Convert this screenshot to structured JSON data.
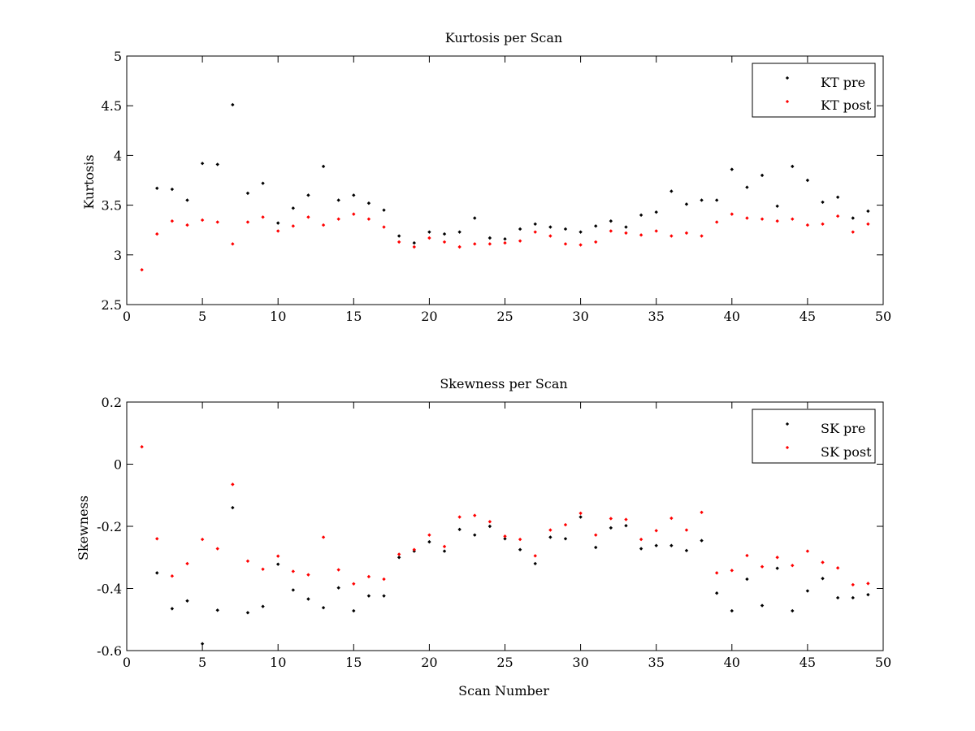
{
  "chart_data": [
    {
      "type": "scatter",
      "title": "Kurtosis per Scan",
      "xlabel": "",
      "ylabel": "Kurtosis",
      "xlim": [
        0,
        50
      ],
      "ylim": [
        2.5,
        5
      ],
      "xticks": [
        0,
        5,
        10,
        15,
        20,
        25,
        30,
        35,
        40,
        45,
        50
      ],
      "yticks": [
        2.5,
        3,
        3.5,
        4,
        4.5,
        5
      ],
      "ytick_labels": [
        "2.5",
        "3",
        "3.5",
        "4",
        "4.5",
        "5"
      ],
      "legend_position": "top-right",
      "series": [
        {
          "name": "KT pre",
          "color": "#000000",
          "x": [
            2,
            3,
            4,
            5,
            6,
            7,
            8,
            9,
            10,
            11,
            12,
            13,
            14,
            15,
            16,
            17,
            18,
            19,
            20,
            21,
            22,
            23,
            24,
            25,
            26,
            27,
            28,
            29,
            30,
            31,
            32,
            33,
            34,
            35,
            36,
            37,
            38,
            39,
            40,
            41,
            42,
            43,
            44,
            45,
            46,
            47,
            48,
            49
          ],
          "values": [
            3.67,
            3.66,
            3.55,
            3.92,
            3.91,
            4.51,
            3.62,
            3.72,
            3.32,
            3.47,
            3.6,
            3.89,
            3.55,
            3.6,
            3.52,
            3.45,
            3.19,
            3.12,
            3.23,
            3.21,
            3.23,
            3.37,
            3.17,
            3.16,
            3.26,
            3.31,
            3.28,
            3.26,
            3.23,
            3.29,
            3.34,
            3.28,
            3.4,
            3.43,
            3.64,
            3.51,
            3.55,
            3.55,
            3.86,
            3.68,
            3.8,
            3.49,
            3.89,
            3.75,
            3.53,
            3.58,
            3.37,
            3.44
          ]
        },
        {
          "name": "KT post",
          "color": "#ff0000",
          "x": [
            1,
            2,
            3,
            4,
            5,
            6,
            7,
            8,
            9,
            10,
            11,
            12,
            13,
            14,
            15,
            16,
            17,
            18,
            19,
            20,
            21,
            22,
            23,
            24,
            25,
            26,
            27,
            28,
            29,
            30,
            31,
            32,
            33,
            34,
            35,
            36,
            37,
            38,
            39,
            40,
            41,
            42,
            43,
            44,
            45,
            46,
            47,
            48,
            49
          ],
          "values": [
            2.85,
            3.21,
            3.34,
            3.3,
            3.35,
            3.33,
            3.11,
            3.33,
            3.38,
            3.24,
            3.29,
            3.38,
            3.3,
            3.36,
            3.41,
            3.36,
            3.28,
            3.13,
            3.08,
            3.17,
            3.13,
            3.08,
            3.11,
            3.11,
            3.12,
            3.14,
            3.23,
            3.19,
            3.11,
            3.1,
            3.13,
            3.24,
            3.22,
            3.2,
            3.24,
            3.19,
            3.22,
            3.19,
            3.33,
            3.41,
            3.37,
            3.36,
            3.34,
            3.36,
            3.3,
            3.31,
            3.39,
            3.23,
            3.31
          ]
        }
      ]
    },
    {
      "type": "scatter",
      "title": "Skewness per Scan",
      "xlabel": "Scan Number",
      "ylabel": "Skewness",
      "xlim": [
        0,
        50
      ],
      "ylim": [
        -0.6,
        0.2
      ],
      "xticks": [
        0,
        5,
        10,
        15,
        20,
        25,
        30,
        35,
        40,
        45,
        50
      ],
      "yticks": [
        -0.6,
        -0.4,
        -0.2,
        0,
        0.2
      ],
      "ytick_labels": [
        "-0.6",
        "-0.4",
        "-0.2",
        "0",
        "0.2"
      ],
      "legend_position": "top-right",
      "series": [
        {
          "name": "SK pre",
          "color": "#000000",
          "x": [
            2,
            3,
            4,
            5,
            6,
            7,
            8,
            9,
            10,
            11,
            12,
            13,
            14,
            15,
            16,
            17,
            18,
            19,
            20,
            21,
            22,
            23,
            24,
            25,
            26,
            27,
            28,
            29,
            30,
            31,
            32,
            33,
            34,
            35,
            36,
            37,
            38,
            39,
            40,
            41,
            42,
            43,
            44,
            45,
            46,
            47,
            48,
            49
          ],
          "values": [
            -0.35,
            -0.465,
            -0.44,
            -0.578,
            -0.47,
            -0.14,
            -0.478,
            -0.458,
            -0.322,
            -0.405,
            -0.434,
            -0.462,
            -0.398,
            -0.472,
            -0.424,
            -0.424,
            -0.3,
            -0.28,
            -0.25,
            -0.28,
            -0.21,
            -0.228,
            -0.2,
            -0.24,
            -0.275,
            -0.32,
            -0.235,
            -0.24,
            -0.17,
            -0.268,
            -0.205,
            -0.198,
            -0.272,
            -0.262,
            -0.262,
            -0.278,
            -0.246,
            -0.415,
            -0.472,
            -0.37,
            -0.455,
            -0.335,
            -0.472,
            -0.408,
            -0.368,
            -0.43,
            -0.43,
            -0.42
          ]
        },
        {
          "name": "SK post",
          "color": "#ff0000",
          "x": [
            1,
            2,
            3,
            4,
            5,
            6,
            7,
            8,
            9,
            10,
            11,
            12,
            13,
            14,
            15,
            16,
            17,
            18,
            19,
            20,
            21,
            22,
            23,
            24,
            25,
            26,
            27,
            28,
            29,
            30,
            31,
            32,
            33,
            34,
            35,
            36,
            37,
            38,
            39,
            40,
            41,
            42,
            43,
            44,
            45,
            46,
            47,
            48,
            49
          ],
          "values": [
            0.056,
            -0.24,
            -0.36,
            -0.32,
            -0.242,
            -0.272,
            -0.065,
            -0.312,
            -0.338,
            -0.296,
            -0.345,
            -0.356,
            -0.235,
            -0.34,
            -0.385,
            -0.362,
            -0.37,
            -0.29,
            -0.275,
            -0.228,
            -0.265,
            -0.17,
            -0.165,
            -0.185,
            -0.232,
            -0.242,
            -0.295,
            -0.212,
            -0.195,
            -0.158,
            -0.228,
            -0.175,
            -0.178,
            -0.242,
            -0.214,
            -0.174,
            -0.212,
            -0.155,
            -0.35,
            -0.342,
            -0.294,
            -0.33,
            -0.3,
            -0.326,
            -0.28,
            -0.316,
            -0.334,
            -0.388,
            -0.384
          ]
        }
      ]
    }
  ]
}
